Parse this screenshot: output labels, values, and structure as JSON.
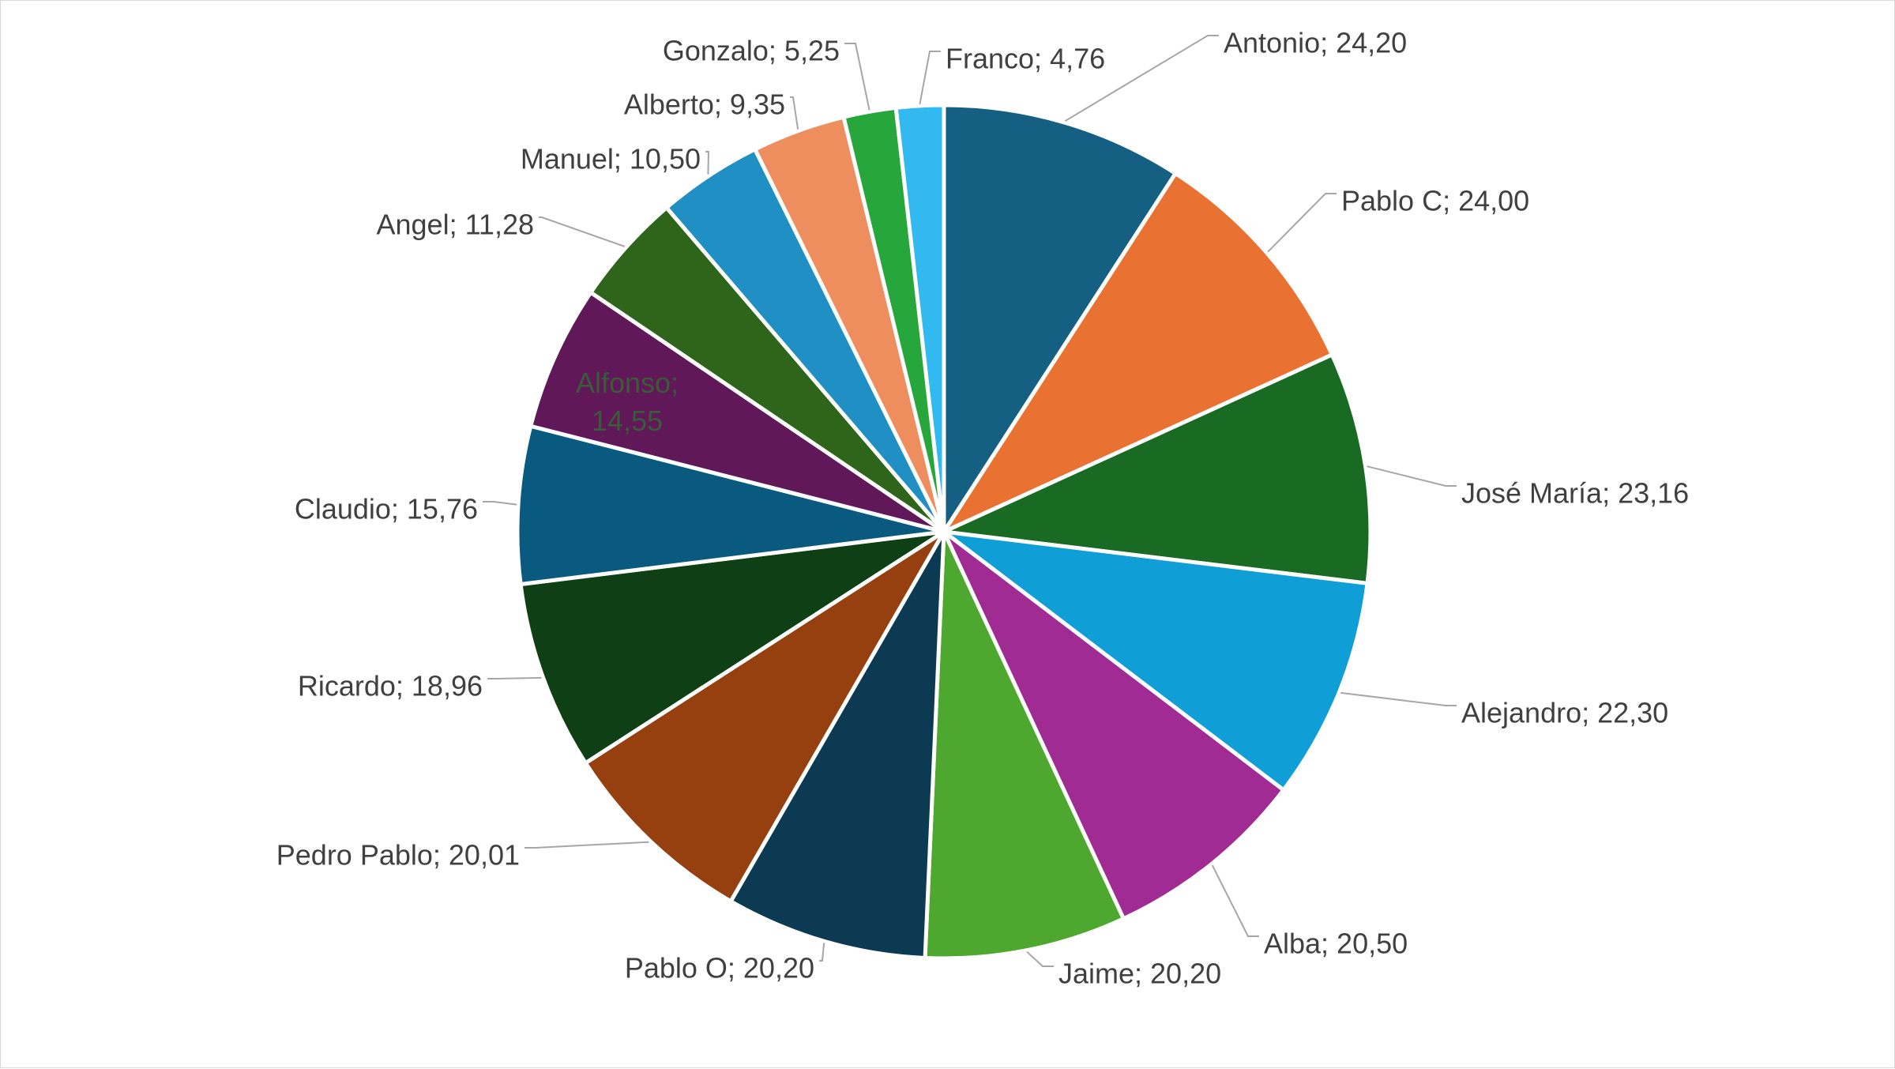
{
  "chart_data": {
    "type": "pie",
    "title": "",
    "legend": "none",
    "label_format": "{name}; {value}",
    "slices": [
      {
        "name": "Antonio",
        "value": 24.2,
        "label": "Antonio; 24,20",
        "color": "#156082"
      },
      {
        "name": "Pablo C",
        "value": 24.0,
        "label": "Pablo C; 24,00",
        "color": "#E97132"
      },
      {
        "name": "José María",
        "value": 23.16,
        "label": "José María; 23,16",
        "color": "#196B24"
      },
      {
        "name": "Alejandro",
        "value": 22.3,
        "label": "Alejandro; 22,30",
        "color": "#0F9ED5"
      },
      {
        "name": "Alba",
        "value": 20.5,
        "label": "Alba; 20,50",
        "color": "#A02B93"
      },
      {
        "name": "Jaime",
        "value": 20.2,
        "label": "Jaime; 20,20",
        "color": "#4EA72E"
      },
      {
        "name": "Pablo O",
        "value": 20.2,
        "label": "Pablo O; 20,20",
        "color": "#0D3A53"
      },
      {
        "name": "Pedro Pablo",
        "value": 20.01,
        "label": "Pedro Pablo; 20,01",
        "color": "#96400F"
      },
      {
        "name": "Ricardo",
        "value": 18.96,
        "label": "Ricardo; 18,96",
        "color": "#0F3F15"
      },
      {
        "name": "Claudio",
        "value": 15.76,
        "label": "Claudio; 15,76",
        "color": "#0A5A80"
      },
      {
        "name": "Alfonso",
        "value": 14.55,
        "label": "Alfonso; 14,55",
        "color": "#601858"
      },
      {
        "name": "Angel",
        "value": 11.28,
        "label": "Angel; 11,28",
        "color": "#2F651B"
      },
      {
        "name": "Manuel",
        "value": 10.5,
        "label": "Manuel; 10,50",
        "color": "#208FC4"
      },
      {
        "name": "Alberto",
        "value": 9.35,
        "label": "Alberto; 9,35",
        "color": "#EE8D5E"
      },
      {
        "name": "Gonzalo",
        "value": 5.25,
        "label": "Gonzalo; 5,25",
        "color": "#27A73B"
      },
      {
        "name": "Franco",
        "value": 4.76,
        "label": "Franco; 4,76",
        "color": "#31B9F0"
      }
    ]
  }
}
